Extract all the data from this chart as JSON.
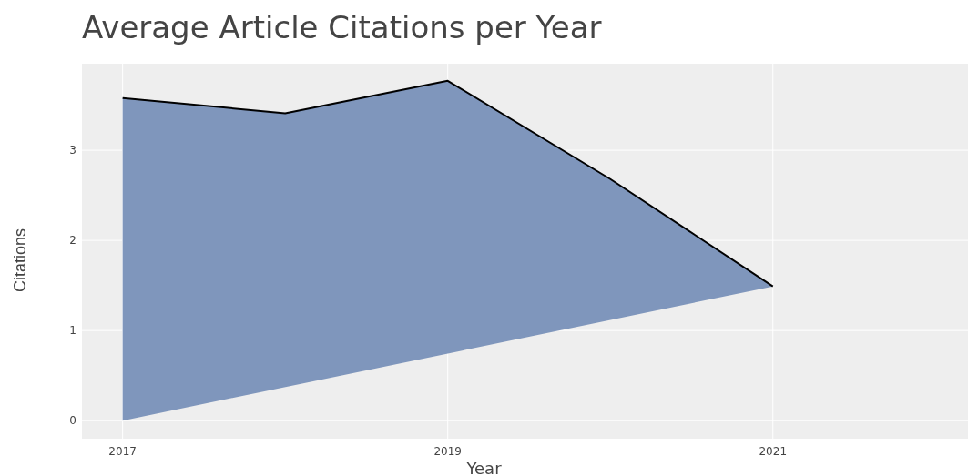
{
  "chart_data": {
    "type": "area",
    "title": "Average Article Citations per Year",
    "xlabel": "Year",
    "ylabel": "Citations",
    "x": [
      2017,
      2018,
      2019,
      2020,
      2021
    ],
    "series": [
      {
        "color": "#7890b8",
        "values": [
          3.58,
          3.41,
          3.77,
          2.68,
          1.49
        ]
      }
    ],
    "xlim": [
      2016.75,
      2022.2
    ],
    "xticks": [
      2017,
      2019,
      2021
    ],
    "ylim": [
      -0.2,
      3.96
    ],
    "yticks": [
      0,
      1,
      2,
      3
    ],
    "grid": true
  }
}
